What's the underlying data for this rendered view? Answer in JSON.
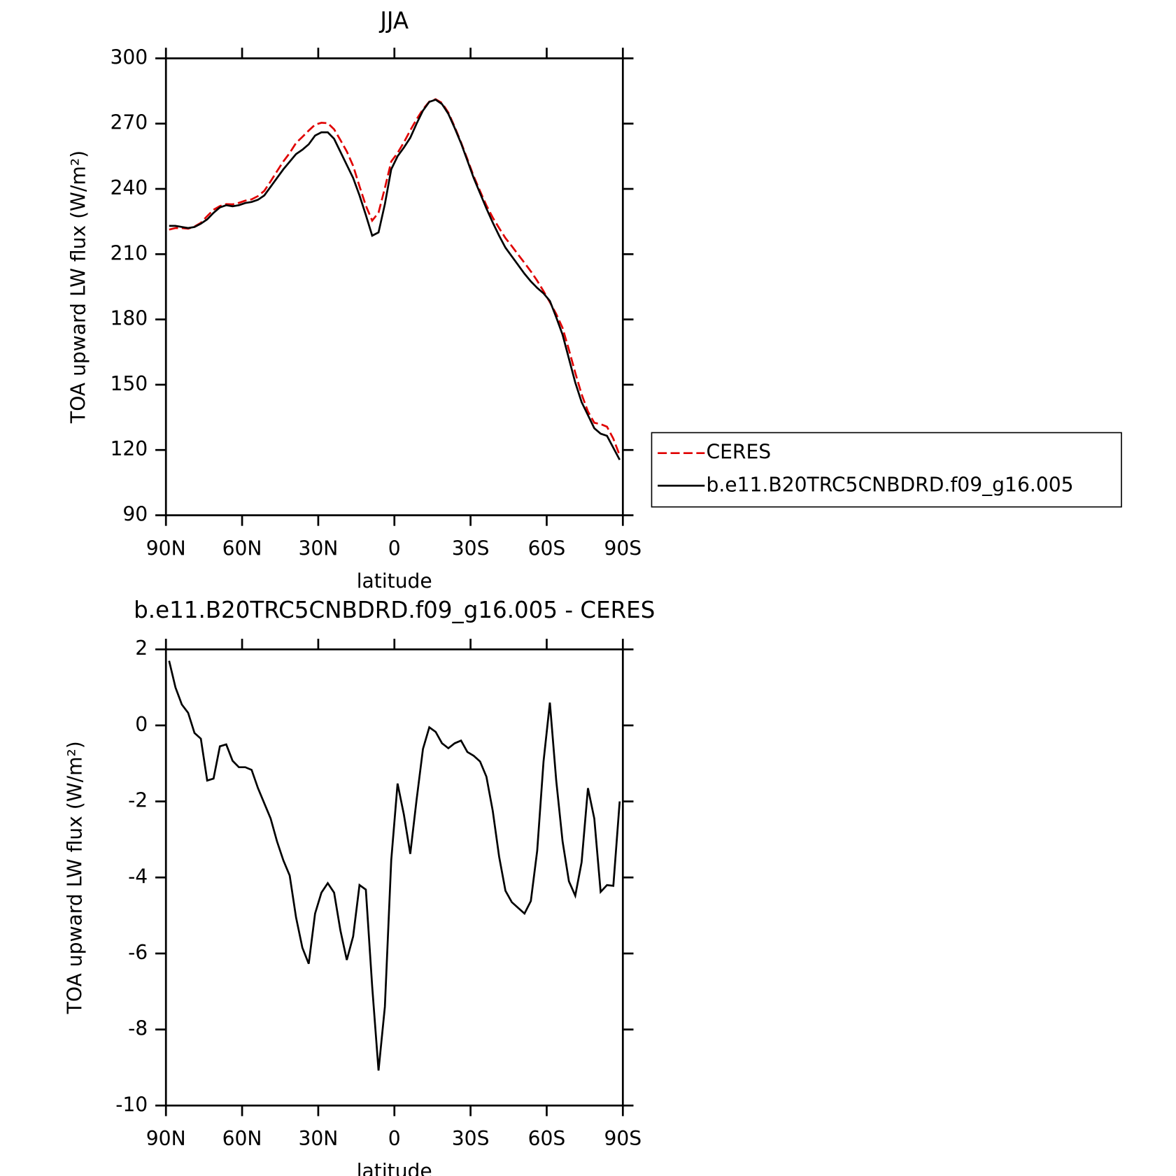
{
  "chart_data": [
    {
      "type": "line",
      "title": "JJA",
      "xlabel": "latitude",
      "ylabel": "TOA upward LW flux (W/m²)",
      "x": [
        88.75,
        86.25,
        83.75,
        81.25,
        78.75,
        76.25,
        73.75,
        71.25,
        68.75,
        66.25,
        63.75,
        61.25,
        58.75,
        56.25,
        53.75,
        51.25,
        48.75,
        46.25,
        43.75,
        41.25,
        38.75,
        36.25,
        33.75,
        31.25,
        28.75,
        26.25,
        23.75,
        21.25,
        18.75,
        16.25,
        13.75,
        11.25,
        8.75,
        6.25,
        3.75,
        1.25,
        -1.25,
        -3.75,
        -6.25,
        -8.75,
        -11.25,
        -13.75,
        -16.25,
        -18.75,
        -21.25,
        -23.75,
        -26.25,
        -28.75,
        -31.25,
        -33.75,
        -36.25,
        -38.75,
        -41.25,
        -43.75,
        -46.25,
        -48.75,
        -51.25,
        -53.75,
        -56.25,
        -58.75,
        -61.25,
        -63.75,
        -66.25,
        -68.75,
        -71.25,
        -73.75,
        -76.25,
        -78.75,
        -81.25,
        -83.75,
        -86.25,
        -88.75
      ],
      "series": [
        {
          "name": "CERES",
          "color": "#e00000",
          "line_style": "dashed",
          "values": [
            221.3,
            222,
            222,
            221.7,
            222.7,
            224.4,
            227.5,
            230.4,
            232.1,
            233,
            232.9,
            233.6,
            234.6,
            235.2,
            236.7,
            239.1,
            243.5,
            248.1,
            252.6,
            256.5,
            261.1,
            263.9,
            266.8,
            269.5,
            270.4,
            270.2,
            267.4,
            262.4,
            257.2,
            250.6,
            241.2,
            232.3,
            225.4,
            229.1,
            240.4,
            252.6,
            256.5,
            261.4,
            266.9,
            272,
            276.6,
            280.1,
            281.2,
            279.5,
            275.1,
            268.5,
            261.4,
            253.7,
            245.8,
            239,
            232.4,
            226.8,
            222,
            217.4,
            213.7,
            209.8,
            206,
            202.1,
            197.8,
            193,
            187.9,
            182.5,
            176.1,
            166.1,
            155.5,
            145.6,
            137.7,
            132.5,
            131.9,
            130.7,
            125.2,
            117.5
          ]
        },
        {
          "name": "b.e11.B20TRC5CNBDRD.f09_g16.005",
          "color": "#000000",
          "line_style": "solid",
          "values": [
            223,
            223,
            222.5,
            222,
            222.5,
            224,
            226,
            229,
            231.5,
            232.5,
            232,
            232.5,
            233.5,
            234,
            235,
            237,
            241,
            245,
            249,
            252.5,
            256,
            258,
            260.5,
            264.5,
            266,
            266,
            263,
            257,
            251,
            245,
            237,
            228,
            218.5,
            220,
            233,
            249,
            255,
            259,
            263.5,
            270,
            276,
            280,
            281,
            279,
            274.5,
            268,
            261,
            253,
            245,
            238,
            231,
            224.5,
            218.5,
            213,
            209,
            205,
            201,
            197.5,
            194.5,
            192,
            188.5,
            181,
            173,
            162,
            151,
            142,
            136,
            130,
            127.5,
            126.5,
            121,
            115.5
          ]
        }
      ],
      "xlim": [
        90,
        -90
      ],
      "xticks": [
        {
          "value": 90,
          "label": "90N"
        },
        {
          "value": 60,
          "label": "60N"
        },
        {
          "value": 30,
          "label": "30N"
        },
        0,
        {
          "value": -30,
          "label": "30S"
        },
        {
          "value": -60,
          "label": "60S"
        },
        {
          "value": -90,
          "label": "90S"
        }
      ],
      "ylim": [
        90,
        300
      ],
      "yticks": [
        90,
        120,
        150,
        180,
        210,
        240,
        270,
        300
      ],
      "legend": "right"
    },
    {
      "type": "line",
      "title": "b.e11.B20TRC5CNBDRD.f09_g16.005 - CERES",
      "xlabel": "latitude",
      "ylabel": "TOA upward LW flux (W/m²)",
      "x": [
        88.75,
        86.25,
        83.75,
        81.25,
        78.75,
        76.25,
        73.75,
        71.25,
        68.75,
        66.25,
        63.75,
        61.25,
        58.75,
        56.25,
        53.75,
        51.25,
        48.75,
        46.25,
        43.75,
        41.25,
        38.75,
        36.25,
        33.75,
        31.25,
        28.75,
        26.25,
        23.75,
        21.25,
        18.75,
        16.25,
        13.75,
        11.25,
        8.75,
        6.25,
        3.75,
        1.25,
        -1.25,
        -3.75,
        -6.25,
        -8.75,
        -11.25,
        -13.75,
        -16.25,
        -18.75,
        -21.25,
        -23.75,
        -26.25,
        -28.75,
        -31.25,
        -33.75,
        -36.25,
        -38.75,
        -41.25,
        -43.75,
        -46.25,
        -48.75,
        -51.25,
        -53.75,
        -56.25,
        -58.75,
        -61.25,
        -63.75,
        -66.25,
        -68.75,
        -71.25,
        -73.75,
        -76.25,
        -78.75,
        -81.25,
        -83.75,
        -86.25,
        -88.75
      ],
      "series": [
        {
          "color": "#000000",
          "line_style": "solid",
          "values": [
            1.7,
            1,
            0.55,
            0.33,
            -0.2,
            -0.35,
            -1.45,
            -1.4,
            -0.55,
            -0.5,
            -0.93,
            -1.1,
            -1.1,
            -1.17,
            -1.65,
            -2.05,
            -2.45,
            -3.05,
            -3.55,
            -3.95,
            -5.05,
            -5.85,
            -6.27,
            -4.95,
            -4.4,
            -4.15,
            -4.4,
            -5.4,
            -6.17,
            -5.55,
            -4.2,
            -4.32,
            -6.87,
            -9.08,
            -7.4,
            -3.55,
            -1.53,
            -2.35,
            -3.38,
            -1.95,
            -0.62,
            -0.05,
            -0.17,
            -0.47,
            -0.6,
            -0.47,
            -0.4,
            -0.7,
            -0.8,
            -0.95,
            -1.35,
            -2.25,
            -3.45,
            -4.35,
            -4.65,
            -4.8,
            -4.95,
            -4.62,
            -3.3,
            -0.95,
            0.6,
            -1.45,
            -3.05,
            -4.1,
            -4.48,
            -3.6,
            -1.65,
            -2.45,
            -4.38,
            -4.2,
            -4.22,
            -2
          ]
        }
      ],
      "xlim": [
        90,
        -90
      ],
      "xticks": [
        {
          "value": 90,
          "label": "90N"
        },
        {
          "value": 60,
          "label": "60N"
        },
        {
          "value": 30,
          "label": "30N"
        },
        0,
        {
          "value": -30,
          "label": "30S"
        },
        {
          "value": -60,
          "label": "60S"
        },
        {
          "value": -90,
          "label": "90S"
        }
      ],
      "ylim": [
        -10,
        2
      ],
      "yticks": [
        -10,
        -8,
        -6,
        -4,
        -2,
        0,
        2
      ]
    }
  ]
}
